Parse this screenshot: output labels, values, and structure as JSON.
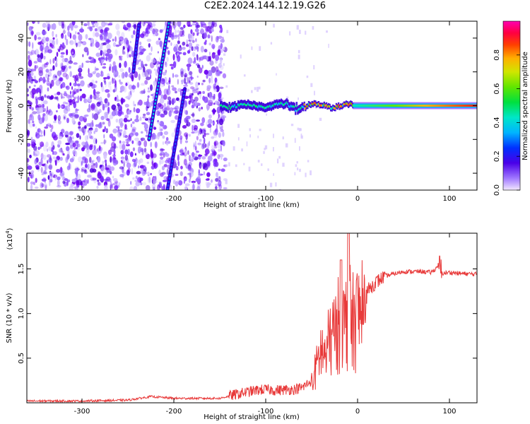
{
  "figure": {
    "title": "C2E2.2024.144.12.19.G26"
  },
  "chart_data": [
    {
      "type": "heatmap",
      "title": "C2E2.2024.144.12.19.G26",
      "xlabel": "Height of straight line (km)",
      "ylabel": "Frequency (Hz)",
      "xlim": [
        -360,
        130
      ],
      "ylim": [
        -50,
        50
      ],
      "x_ticks": [
        -300,
        -200,
        -100,
        0,
        100
      ],
      "y_ticks": [
        -40,
        -20,
        0,
        20,
        40
      ],
      "grid": false,
      "colorbar": {
        "label": "Normalized spectral amplitude",
        "range": [
          0,
          1
        ],
        "ticks": [
          0.0,
          0.2,
          0.4,
          0.6,
          0.8
        ],
        "colormap": "rainbow (violet to red to magenta)"
      },
      "features": [
        {
          "name": "noise",
          "x_range": [
            -360,
            -150
          ],
          "y_range": [
            -50,
            50
          ],
          "amplitude": 0.15
        },
        {
          "name": "streak_1",
          "from": [
            -227,
            -20
          ],
          "to": [
            -205,
            50
          ],
          "amplitude": 0.35
        },
        {
          "name": "streak_2",
          "from": [
            -207,
            -50
          ],
          "to": [
            -188,
            10
          ],
          "amplitude": 0.2
        },
        {
          "name": "streak_3",
          "from": [
            -244,
            20
          ],
          "to": [
            -238,
            48
          ],
          "amplitude": 0.2
        },
        {
          "name": "signal_band",
          "x_range": [
            -150,
            130
          ],
          "y_center": 0,
          "amplitude_range": [
            0.35,
            0.9
          ]
        }
      ]
    },
    {
      "type": "line",
      "title": "",
      "xlabel": "Height of straight line (km)",
      "ylabel": "SNR (10 * v/v)",
      "y_scale_label": "(x10",
      "y_scale_exponent": "4",
      "xlim": [
        -360,
        130
      ],
      "ylim": [
        0,
        1.9
      ],
      "x_ticks": [
        -300,
        -200,
        -100,
        0,
        100
      ],
      "y_ticks": [
        0.5,
        1.0,
        1.5
      ],
      "y_tick_labels": [
        "0.5",
        "1.0",
        "1.5"
      ],
      "grid": false,
      "color": "#e83a3a",
      "series": [
        {
          "x": [
            -360,
            -300,
            -250,
            -225,
            -200,
            -150,
            -130,
            -110,
            -100,
            -90,
            -70,
            -60,
            -50,
            -45,
            -40,
            -35,
            -30,
            -25,
            -20,
            -15,
            -10,
            -5,
            0,
            10,
            20,
            30,
            50,
            70,
            80,
            85,
            88,
            92,
            100,
            110,
            130
          ],
          "values": [
            0.02,
            0.02,
            0.03,
            0.07,
            0.05,
            0.05,
            0.1,
            0.14,
            0.15,
            0.14,
            0.15,
            0.17,
            0.25,
            0.45,
            0.7,
            0.6,
            0.85,
            0.9,
            1.05,
            1.0,
            1.15,
            1.05,
            1.15,
            1.25,
            1.35,
            1.42,
            1.47,
            1.47,
            1.46,
            1.5,
            1.55,
            1.45,
            1.46,
            1.45,
            1.44
          ]
        }
      ]
    }
  ]
}
